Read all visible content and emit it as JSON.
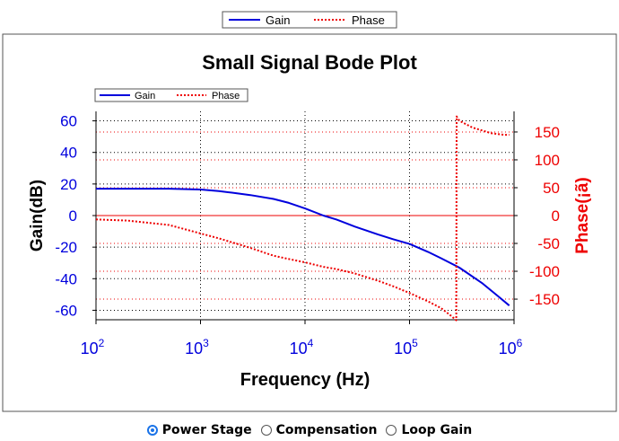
{
  "outer_legend": {
    "gain_label": "Gain",
    "phase_label": "Phase"
  },
  "inner_legend": {
    "gain_label": "Gain",
    "phase_label": "Phase"
  },
  "radio_options": [
    {
      "label": "Power Stage",
      "selected": true
    },
    {
      "label": "Compensation",
      "selected": false
    },
    {
      "label": "Loop Gain",
      "selected": false
    }
  ],
  "colors": {
    "gain": "#0000dd",
    "phase": "#ee0000",
    "zero_line": "#ee0000",
    "frame_border": "#555555"
  },
  "chart_data": {
    "type": "line",
    "title": "Small Signal Bode Plot",
    "xlabel": "Frequency (Hz)",
    "ylabel_left": "Gain(dB)",
    "ylabel_right": "Phase(¡ã)",
    "x_scale": "log",
    "xlim": [
      100,
      1000000
    ],
    "x_ticks": [
      {
        "value": 100,
        "base": "10",
        "exp": "2"
      },
      {
        "value": 1000,
        "base": "10",
        "exp": "3"
      },
      {
        "value": 10000,
        "base": "10",
        "exp": "4"
      },
      {
        "value": 100000,
        "base": "10",
        "exp": "5"
      },
      {
        "value": 1000000,
        "base": "10",
        "exp": "6"
      }
    ],
    "y_left_lim": [
      -66,
      66
    ],
    "y_left_ticks": [
      60,
      40,
      20,
      0,
      -20,
      -40,
      -60
    ],
    "y_right_lim": [
      -187,
      187
    ],
    "y_right_ticks": [
      150,
      100,
      50,
      0,
      -50,
      -100,
      -150
    ],
    "grid": true,
    "legend_position": "top-left",
    "series": [
      {
        "name": "Gain",
        "axis": "left",
        "style": "solid",
        "x": [
          100,
          200,
          500,
          1000,
          1500,
          2000,
          3000,
          5000,
          7000,
          10000,
          15000,
          20000,
          30000,
          50000,
          70000,
          100000,
          150000,
          200000,
          300000,
          500000,
          700000,
          900000
        ],
        "y": [
          17,
          17,
          17,
          16.5,
          15.5,
          14.5,
          13,
          10.5,
          8,
          4.5,
          0,
          -2.5,
          -7,
          -12,
          -15,
          -18,
          -23,
          -27,
          -33,
          -43,
          -51,
          -57
        ]
      },
      {
        "name": "Phase",
        "axis": "right",
        "style": "dotted",
        "x": [
          100,
          200,
          500,
          1000,
          1500,
          2000,
          3000,
          5000,
          7000,
          10000,
          15000,
          20000,
          30000,
          50000,
          70000,
          100000,
          150000,
          200000,
          250000,
          280000,
          282000,
          300000,
          400000,
          600000,
          800000,
          900000
        ],
        "y": [
          -7,
          -9,
          -17,
          -32,
          -41,
          -48,
          -58,
          -72,
          -78,
          -84,
          -92,
          -96,
          -104,
          -117,
          -127,
          -139,
          -154,
          -166,
          -180,
          -188,
          178,
          170,
          158,
          148,
          145,
          145
        ]
      }
    ]
  }
}
